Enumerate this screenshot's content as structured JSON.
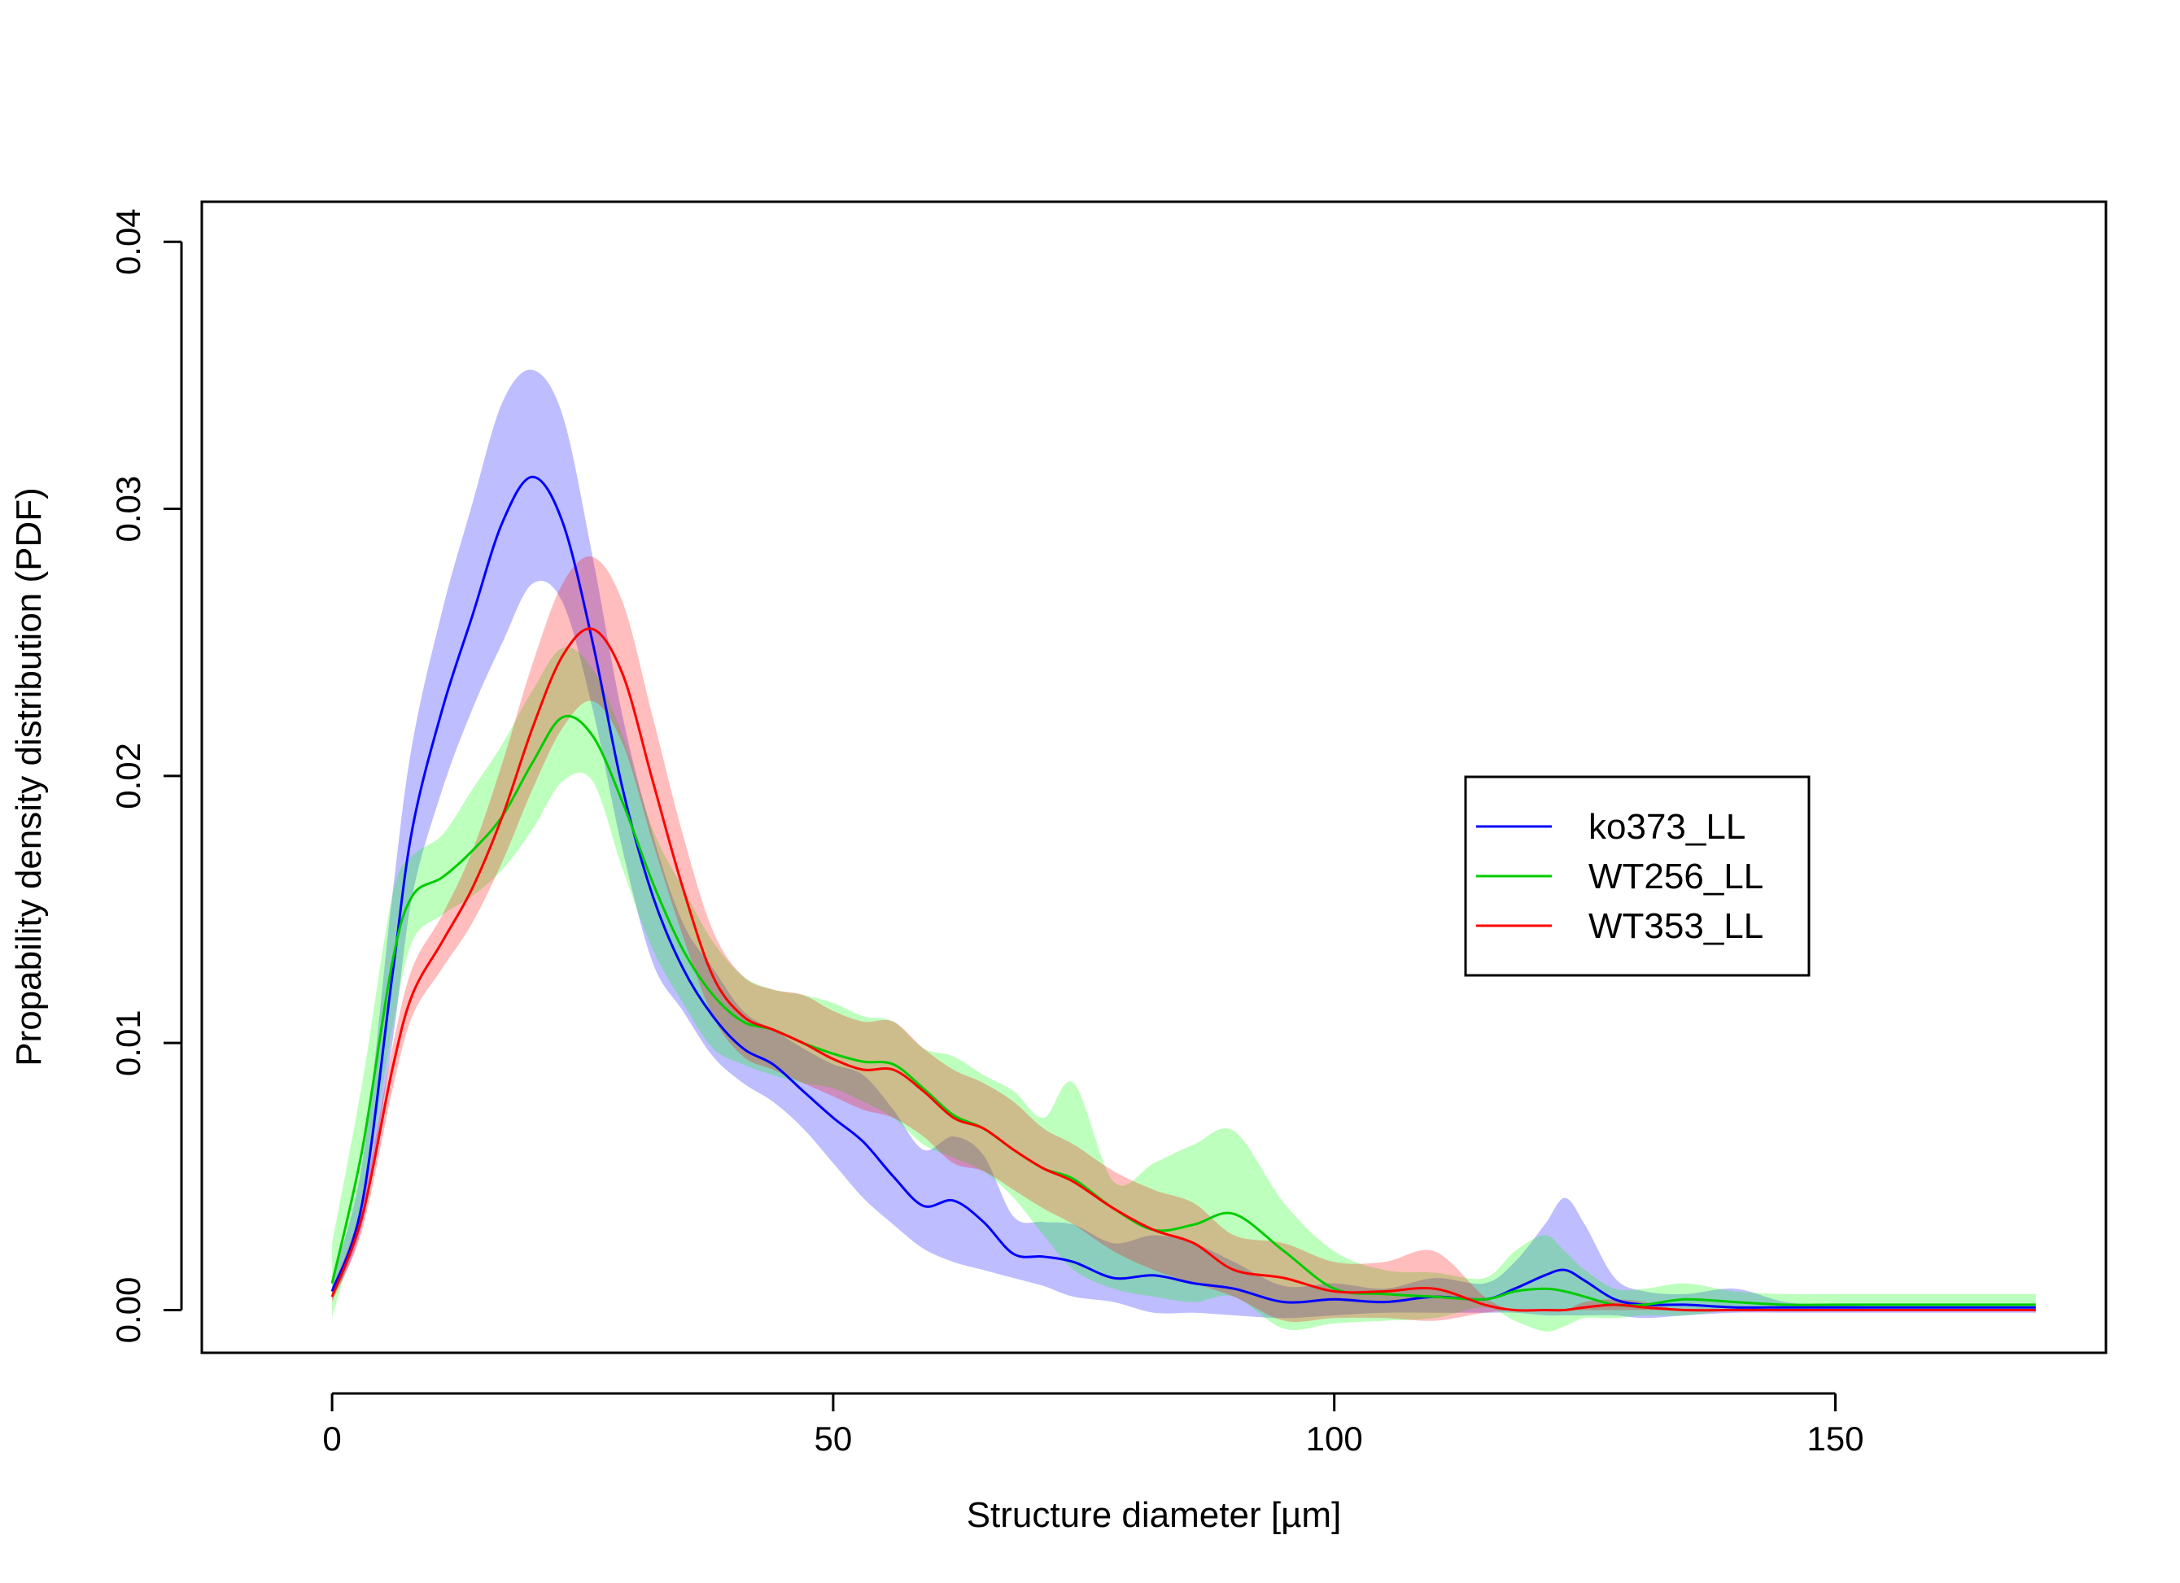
{
  "chart_data": {
    "type": "line",
    "title": "",
    "xlabel": "Structure diameter [µm]",
    "ylabel": "Propability density distribution (PDF)",
    "xlim": [
      -13,
      177
    ],
    "ylim": [
      -0.0016,
      0.0415
    ],
    "xticks": [
      0,
      50,
      100,
      150
    ],
    "xtick_labels": [
      "0",
      "50",
      "100",
      "150"
    ],
    "yticks": [
      0,
      0.01,
      0.02,
      0.03,
      0.04
    ],
    "ytick_labels": [
      "0.00",
      "0.01",
      "0.02",
      "0.03",
      "0.04"
    ],
    "grid": false,
    "legend_position": "right",
    "series": [
      {
        "name": "ko373_LL",
        "color": "#0000ff",
        "band_color": "#0000ff",
        "x": [
          0,
          3,
          6,
          8,
          11,
          14,
          17,
          20,
          23,
          26,
          29,
          32,
          35,
          38,
          41,
          44,
          47,
          50,
          53,
          56,
          59,
          62,
          65,
          68,
          71,
          74,
          78,
          82,
          86,
          90,
          95,
          100,
          105,
          110,
          115,
          118,
          121,
          123,
          125,
          128,
          131,
          135,
          140,
          145,
          150,
          155,
          160,
          165,
          170
        ],
        "y": [
          0.0007,
          0.004,
          0.0125,
          0.018,
          0.0225,
          0.026,
          0.0295,
          0.0312,
          0.0295,
          0.025,
          0.0195,
          0.0155,
          0.0128,
          0.011,
          0.0098,
          0.0092,
          0.0082,
          0.0072,
          0.0063,
          0.005,
          0.0039,
          0.0041,
          0.0033,
          0.0021,
          0.002,
          0.0018,
          0.0012,
          0.0013,
          0.001,
          0.0008,
          0.0003,
          0.0004,
          0.0003,
          0.0005,
          0.0004,
          0.0008,
          0.0013,
          0.0015,
          0.0011,
          0.0004,
          0.0002,
          0.0002,
          0.0001,
          0.0001,
          0.0001,
          0.0001,
          0.0001,
          0.0001,
          0.0001
        ],
        "lower": [
          0.0004,
          0.0032,
          0.01,
          0.0155,
          0.0195,
          0.0225,
          0.025,
          0.0272,
          0.0265,
          0.0225,
          0.0172,
          0.013,
          0.0112,
          0.0095,
          0.0085,
          0.0078,
          0.0068,
          0.0055,
          0.0042,
          0.0032,
          0.0023,
          0.0018,
          0.0015,
          0.0012,
          0.0009,
          0.0005,
          0.0003,
          -0.0001,
          -0.0001,
          -0.0002,
          -0.0003,
          -0.0002,
          -0.0001,
          -0.0001,
          -0.0001,
          -0.0001,
          -0.0002,
          -0.0002,
          -0.0002,
          -0.0002,
          -0.0003,
          -0.0002,
          -0.0001,
          -0.0001,
          -0.0001,
          -0.0001,
          -0.0001,
          -0.0001,
          -0.0001
        ],
        "upper": [
          0.0012,
          0.0055,
          0.0155,
          0.0212,
          0.0262,
          0.0302,
          0.034,
          0.0352,
          0.0335,
          0.0282,
          0.0222,
          0.0178,
          0.0145,
          0.0128,
          0.0112,
          0.0105,
          0.0098,
          0.0092,
          0.0088,
          0.0075,
          0.006,
          0.0065,
          0.0058,
          0.0035,
          0.0033,
          0.0032,
          0.0025,
          0.0028,
          0.0025,
          0.0018,
          0.0009,
          0.001,
          0.0008,
          0.0012,
          0.001,
          0.0018,
          0.0032,
          0.0042,
          0.0032,
          0.0012,
          0.0007,
          0.0006,
          0.0008,
          0.0003,
          0.0002,
          0.0001,
          0.0001,
          0.0001,
          0.0001
        ]
      },
      {
        "name": "WT256_LL",
        "color": "#00cc00",
        "band_color": "#00ff00",
        "x": [
          0,
          3,
          6,
          8,
          11,
          14,
          17,
          20,
          23,
          26,
          29,
          32,
          35,
          38,
          41,
          44,
          47,
          50,
          53,
          56,
          59,
          62,
          65,
          68,
          71,
          74,
          78,
          82,
          86,
          90,
          95,
          100,
          105,
          110,
          115,
          118,
          121,
          123,
          125,
          128,
          131,
          135,
          140,
          145,
          150,
          155,
          160,
          165,
          170
        ],
        "y": [
          0.001,
          0.006,
          0.013,
          0.0155,
          0.0162,
          0.0172,
          0.0185,
          0.0205,
          0.0222,
          0.0215,
          0.019,
          0.016,
          0.0135,
          0.0118,
          0.0108,
          0.0105,
          0.01,
          0.0096,
          0.0093,
          0.0092,
          0.0083,
          0.0073,
          0.0068,
          0.006,
          0.0053,
          0.0049,
          0.0038,
          0.003,
          0.0032,
          0.0036,
          0.0022,
          0.0008,
          0.0006,
          0.0005,
          0.0004,
          0.0007,
          0.0008,
          0.0007,
          0.0005,
          0.0002,
          0.0002,
          0.0004,
          0.0003,
          0.0002,
          0.0002,
          0.0002,
          0.0002,
          0.0002,
          0.0002
        ],
        "lower": [
          -0.0003,
          0.004,
          0.0105,
          0.0138,
          0.0148,
          0.0155,
          0.0165,
          0.018,
          0.0198,
          0.0198,
          0.0165,
          0.0135,
          0.0115,
          0.0098,
          0.0092,
          0.0088,
          0.0085,
          0.0083,
          0.0078,
          0.0072,
          0.0062,
          0.0057,
          0.0052,
          0.0042,
          0.0028,
          0.0015,
          0.0008,
          0.0005,
          0.0003,
          0.0005,
          -0.0007,
          -0.0005,
          -0.0004,
          -0.0003,
          0.0001,
          -0.0004,
          -0.0008,
          -0.0006,
          -0.0003,
          -0.0003,
          -0.0002,
          -0.0002,
          0.0,
          0.0,
          0.0001,
          0.0,
          0.0,
          0.0,
          0.0
        ],
        "upper": [
          0.0025,
          0.0085,
          0.0155,
          0.017,
          0.0178,
          0.0195,
          0.0212,
          0.0232,
          0.0248,
          0.024,
          0.0215,
          0.018,
          0.0158,
          0.0138,
          0.0125,
          0.012,
          0.0118,
          0.0115,
          0.011,
          0.0108,
          0.0098,
          0.0095,
          0.0088,
          0.0082,
          0.0072,
          0.0085,
          0.0048,
          0.0055,
          0.0062,
          0.0067,
          0.004,
          0.0022,
          0.0015,
          0.0014,
          0.0012,
          0.0022,
          0.0028,
          0.0022,
          0.0015,
          0.0008,
          0.0008,
          0.001,
          0.0007,
          0.0006,
          0.0006,
          0.0006,
          0.0006,
          0.0006,
          0.0006
        ]
      },
      {
        "name": "WT353_LL",
        "color": "#ff0000",
        "band_color": "#ff0000",
        "x": [
          0,
          3,
          6,
          8,
          11,
          14,
          17,
          20,
          23,
          26,
          29,
          32,
          35,
          38,
          41,
          44,
          47,
          50,
          53,
          56,
          59,
          62,
          65,
          68,
          71,
          74,
          78,
          82,
          86,
          90,
          95,
          100,
          105,
          110,
          115,
          118,
          121,
          123,
          125,
          128,
          131,
          135,
          140,
          145,
          150,
          155,
          160,
          165,
          170
        ],
        "y": [
          0.0005,
          0.0035,
          0.009,
          0.0118,
          0.0138,
          0.0158,
          0.0185,
          0.0218,
          0.0245,
          0.0255,
          0.0238,
          0.0198,
          0.0158,
          0.0125,
          0.011,
          0.0105,
          0.01,
          0.0094,
          0.009,
          0.009,
          0.0082,
          0.0072,
          0.0068,
          0.006,
          0.0053,
          0.0048,
          0.0038,
          0.003,
          0.0025,
          0.0015,
          0.0012,
          0.0007,
          0.0007,
          0.0008,
          0.0002,
          0.0,
          0.0,
          0.0,
          0.0001,
          0.0002,
          0.0001,
          0.0,
          0.0,
          0.0,
          0.0,
          0.0,
          0.0,
          0.0,
          0.0
        ],
        "lower": [
          0.0003,
          0.003,
          0.0082,
          0.011,
          0.0128,
          0.0145,
          0.0168,
          0.0195,
          0.0218,
          0.0228,
          0.0212,
          0.0175,
          0.014,
          0.011,
          0.0095,
          0.009,
          0.0085,
          0.008,
          0.0075,
          0.0072,
          0.0065,
          0.0055,
          0.0052,
          0.0045,
          0.0038,
          0.0032,
          0.0022,
          0.0015,
          0.001,
          0.0005,
          -0.0004,
          -0.0003,
          -0.0003,
          -0.0004,
          -0.0001,
          0.0,
          0.0,
          0.0,
          0.0,
          0.0,
          0.0,
          0.0,
          0.0,
          0.0,
          0.0,
          0.0,
          0.0,
          0.0,
          0.0
        ],
        "upper": [
          0.0008,
          0.004,
          0.0098,
          0.0128,
          0.0148,
          0.0172,
          0.0205,
          0.0242,
          0.0272,
          0.0282,
          0.0265,
          0.0222,
          0.0178,
          0.0142,
          0.0125,
          0.012,
          0.0118,
          0.0112,
          0.0108,
          0.0108,
          0.0098,
          0.009,
          0.0085,
          0.0078,
          0.0068,
          0.0062,
          0.0052,
          0.0045,
          0.004,
          0.0028,
          0.0025,
          0.0018,
          0.0018,
          0.0022,
          0.0005,
          0.0,
          0.0,
          0.0,
          0.0003,
          0.0004,
          0.0003,
          0.0,
          0.0,
          0.0,
          0.0,
          0.0,
          0.0,
          0.0,
          0.0
        ]
      }
    ]
  }
}
